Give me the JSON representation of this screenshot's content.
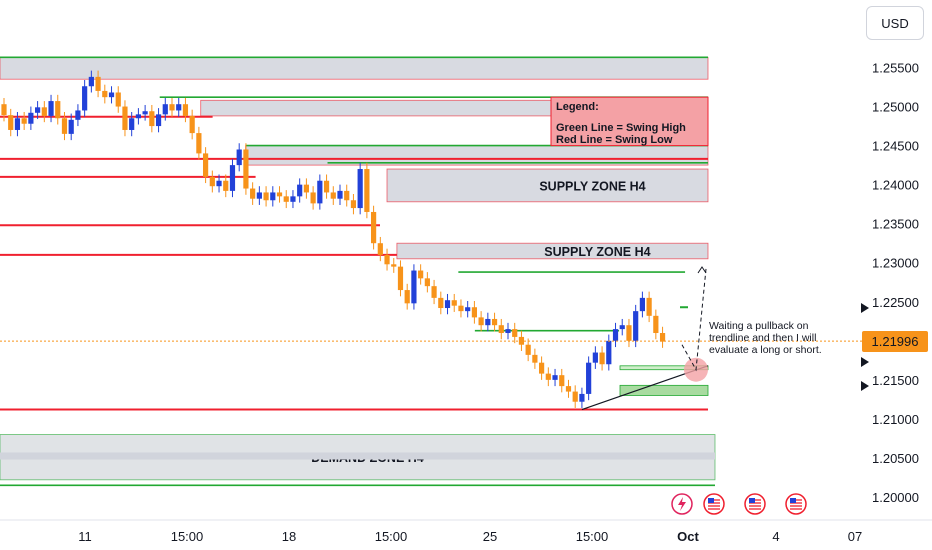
{
  "currency_button": "USD",
  "current_price_label": "1.21996",
  "annotation_text": [
    "Waiting a pullback on",
    "trendline and then I will",
    "evaluate a long or short."
  ],
  "zone_labels": {
    "supply_upper": "SUPPLY ZONE H4",
    "supply_lower": "SUPPLY ZONE H4",
    "demand": "DEMAND ZONE H4"
  },
  "legend": {
    "title": "Legend:",
    "green": "Green Line = Swing High",
    "red": "Red Line = Swing Low"
  },
  "colors": {
    "bull": "#2241d8",
    "bear": "#f7931a",
    "swing_high": "#22a832",
    "swing_low": "#f0202f",
    "zone_fill": "#d1d4dc",
    "legend_fill": "#f4a1a5",
    "demand_fill": "#a8dba0"
  },
  "icons": [
    "lightning-icon",
    "us-flag-icon",
    "us-flag-icon",
    "us-flag-icon"
  ],
  "chart_data": {
    "type": "candlestick",
    "y_axis": {
      "min": 1.1975,
      "max": 1.2585,
      "ticks": [
        "1.25500",
        "1.25000",
        "1.24500",
        "1.24000",
        "1.23500",
        "1.23000",
        "1.22500",
        "1.22000",
        "1.21500",
        "1.21000",
        "1.20500",
        "1.20000"
      ],
      "tick_values": [
        1.255,
        1.25,
        1.245,
        1.24,
        1.235,
        1.23,
        1.225,
        1.22,
        1.215,
        1.21,
        1.205,
        1.2
      ]
    },
    "x_axis": {
      "ticks": [
        "11",
        "15:00",
        "18",
        "15:00",
        "25",
        "15:00",
        "Oct",
        "4",
        "07"
      ],
      "bold_tick": "Oct"
    },
    "current_price": 1.21996,
    "candles": [
      {
        "o": 1.2503,
        "c": 1.2489
      },
      {
        "o": 1.2489,
        "c": 1.247
      },
      {
        "o": 1.247,
        "c": 1.2485
      },
      {
        "o": 1.2485,
        "c": 1.2478
      },
      {
        "o": 1.2478,
        "c": 1.2492
      },
      {
        "o": 1.2492,
        "c": 1.2499
      },
      {
        "o": 1.2499,
        "c": 1.2488
      },
      {
        "o": 1.2488,
        "c": 1.2507
      },
      {
        "o": 1.2507,
        "c": 1.2485
      },
      {
        "o": 1.2485,
        "c": 1.2465
      },
      {
        "o": 1.2465,
        "c": 1.2483
      },
      {
        "o": 1.2483,
        "c": 1.2495
      },
      {
        "o": 1.2495,
        "c": 1.2526
      },
      {
        "o": 1.2526,
        "c": 1.2538
      },
      {
        "o": 1.2538,
        "c": 1.252
      },
      {
        "o": 1.252,
        "c": 1.2512
      },
      {
        "o": 1.2512,
        "c": 1.2518
      },
      {
        "o": 1.2518,
        "c": 1.25
      },
      {
        "o": 1.25,
        "c": 1.247
      },
      {
        "o": 1.247,
        "c": 1.2485
      },
      {
        "o": 1.2485,
        "c": 1.249
      },
      {
        "o": 1.249,
        "c": 1.2494
      },
      {
        "o": 1.2494,
        "c": 1.2475
      },
      {
        "o": 1.2475,
        "c": 1.249
      },
      {
        "o": 1.249,
        "c": 1.2503
      },
      {
        "o": 1.2503,
        "c": 1.2495
      },
      {
        "o": 1.2495,
        "c": 1.2503
      },
      {
        "o": 1.2503,
        "c": 1.2488
      },
      {
        "o": 1.2488,
        "c": 1.2466
      },
      {
        "o": 1.2466,
        "c": 1.244
      },
      {
        "o": 1.244,
        "c": 1.241
      },
      {
        "o": 1.241,
        "c": 1.2398
      },
      {
        "o": 1.2398,
        "c": 1.2405
      },
      {
        "o": 1.2405,
        "c": 1.2392
      },
      {
        "o": 1.2392,
        "c": 1.2425
      },
      {
        "o": 1.2425,
        "c": 1.2445
      },
      {
        "o": 1.2445,
        "c": 1.2395
      },
      {
        "o": 1.2395,
        "c": 1.2382
      },
      {
        "o": 1.2382,
        "c": 1.239
      },
      {
        "o": 1.239,
        "c": 1.238
      },
      {
        "o": 1.238,
        "c": 1.239
      },
      {
        "o": 1.239,
        "c": 1.2385
      },
      {
        "o": 1.2385,
        "c": 1.2378
      },
      {
        "o": 1.2378,
        "c": 1.2385
      },
      {
        "o": 1.2385,
        "c": 1.24
      },
      {
        "o": 1.24,
        "c": 1.239
      },
      {
        "o": 1.239,
        "c": 1.2376
      },
      {
        "o": 1.2376,
        "c": 1.2405
      },
      {
        "o": 1.2405,
        "c": 1.239
      },
      {
        "o": 1.239,
        "c": 1.2382
      },
      {
        "o": 1.2382,
        "c": 1.2392
      },
      {
        "o": 1.2392,
        "c": 1.238
      },
      {
        "o": 1.238,
        "c": 1.237
      },
      {
        "o": 1.237,
        "c": 1.242
      },
      {
        "o": 1.242,
        "c": 1.2365
      },
      {
        "o": 1.2365,
        "c": 1.2325
      },
      {
        "o": 1.2325,
        "c": 1.231
      },
      {
        "o": 1.231,
        "c": 1.2298
      },
      {
        "o": 1.2298,
        "c": 1.2295
      },
      {
        "o": 1.2295,
        "c": 1.2265
      },
      {
        "o": 1.2265,
        "c": 1.2248
      },
      {
        "o": 1.2248,
        "c": 1.229
      },
      {
        "o": 1.229,
        "c": 1.228
      },
      {
        "o": 1.228,
        "c": 1.227
      },
      {
        "o": 1.227,
        "c": 1.2255
      },
      {
        "o": 1.2255,
        "c": 1.2242
      },
      {
        "o": 1.2242,
        "c": 1.2252
      },
      {
        "o": 1.2252,
        "c": 1.2245
      },
      {
        "o": 1.2245,
        "c": 1.2238
      },
      {
        "o": 1.2238,
        "c": 1.2243
      },
      {
        "o": 1.2243,
        "c": 1.223
      },
      {
        "o": 1.223,
        "c": 1.222
      },
      {
        "o": 1.222,
        "c": 1.2228
      },
      {
        "o": 1.2228,
        "c": 1.222
      },
      {
        "o": 1.222,
        "c": 1.221
      },
      {
        "o": 1.221,
        "c": 1.2215
      },
      {
        "o": 1.2215,
        "c": 1.2205
      },
      {
        "o": 1.2205,
        "c": 1.2195
      },
      {
        "o": 1.2195,
        "c": 1.2182
      },
      {
        "o": 1.2182,
        "c": 1.2172
      },
      {
        "o": 1.2172,
        "c": 1.2158
      },
      {
        "o": 1.2158,
        "c": 1.215
      },
      {
        "o": 1.215,
        "c": 1.2156
      },
      {
        "o": 1.2156,
        "c": 1.2142
      },
      {
        "o": 1.2142,
        "c": 1.2135
      },
      {
        "o": 1.2135,
        "c": 1.2122
      },
      {
        "o": 1.2122,
        "c": 1.2132
      },
      {
        "o": 1.2132,
        "c": 1.2172
      },
      {
        "o": 1.2172,
        "c": 1.2185
      },
      {
        "o": 1.2185,
        "c": 1.217
      },
      {
        "o": 1.217,
        "c": 1.22
      },
      {
        "o": 1.22,
        "c": 1.2215
      },
      {
        "o": 1.2215,
        "c": 1.222
      },
      {
        "o": 1.222,
        "c": 1.22
      },
      {
        "o": 1.22,
        "c": 1.2238
      },
      {
        "o": 1.2238,
        "c": 1.2255
      },
      {
        "o": 1.2255,
        "c": 1.2232
      },
      {
        "o": 1.2232,
        "c": 1.221
      },
      {
        "o": 1.221,
        "c": 1.2199
      }
    ],
    "swing_high_lines": [
      {
        "price": 1.2563,
        "x_start_frac": 0.0,
        "x_end_frac": 1.0
      },
      {
        "price": 1.2512,
        "x_start_frac": 0.2256,
        "x_end_frac": 1.0
      },
      {
        "price": 1.245,
        "x_start_frac": 0.3469,
        "x_end_frac": 1.0
      },
      {
        "price": 1.2428,
        "x_start_frac": 0.4626,
        "x_end_frac": 1.0
      },
      {
        "price": 1.2288,
        "x_start_frac": 0.6474,
        "x_end_frac": 0.9676
      },
      {
        "price": 1.2213,
        "x_start_frac": 0.6707,
        "x_end_frac": 0.8744
      },
      {
        "price": 1.2015,
        "x_start_frac": 0.0,
        "x_end_frac": 1.0
      }
    ],
    "swing_low_lines": [
      {
        "price": 1.2487,
        "x_start_frac": 0.0,
        "x_end_frac": 0.3003
      },
      {
        "price": 1.2433,
        "x_start_frac": 0.0,
        "x_end_frac": 1.0
      },
      {
        "price": 1.241,
        "x_start_frac": 0.0,
        "x_end_frac": 0.361
      },
      {
        "price": 1.2348,
        "x_start_frac": 0.0,
        "x_end_frac": 0.5367
      },
      {
        "price": 1.231,
        "x_start_frac": 0.0,
        "x_end_frac": 0.5606
      },
      {
        "price": 1.2112,
        "x_start_frac": 0.0,
        "x_end_frac": 1.0
      }
    ],
    "zones": [
      {
        "name": "top-zone",
        "top": 1.2563,
        "bottom": 1.2535,
        "x_start_frac": 0.0,
        "x_end_frac": 1.0,
        "label_key": ""
      },
      {
        "name": "upper-grey-zone",
        "top": 1.2508,
        "bottom": 1.2488,
        "x_start_frac": 0.2835,
        "x_end_frac": 1.0,
        "label_key": ""
      },
      {
        "name": "mid-grey-zone",
        "top": 1.245,
        "bottom": 1.2425,
        "x_start_frac": 0.3469,
        "x_end_frac": 1.0,
        "label_key": ""
      },
      {
        "name": "supply-upper-zone",
        "top": 1.242,
        "bottom": 1.2378,
        "x_start_frac": 0.5466,
        "x_end_frac": 1.0,
        "label_key": "supply_upper"
      },
      {
        "name": "supply-lower-zone",
        "top": 1.2325,
        "bottom": 1.2305,
        "x_start_frac": 0.5606,
        "x_end_frac": 1.0,
        "label_key": "supply_lower"
      },
      {
        "name": "demand-zone",
        "top": 1.208,
        "bottom": 1.2022,
        "x_start_frac": 0.0,
        "x_end_frac": 1.0,
        "label_key": "demand"
      }
    ],
    "trendline": {
      "from": {
        "candle": 86,
        "price": 1.2112
      },
      "to": {
        "candle": 99,
        "price": 1.2168
      }
    },
    "projection_path": [
      {
        "price": 1.2163
      },
      {
        "price": 1.2292
      }
    ]
  }
}
